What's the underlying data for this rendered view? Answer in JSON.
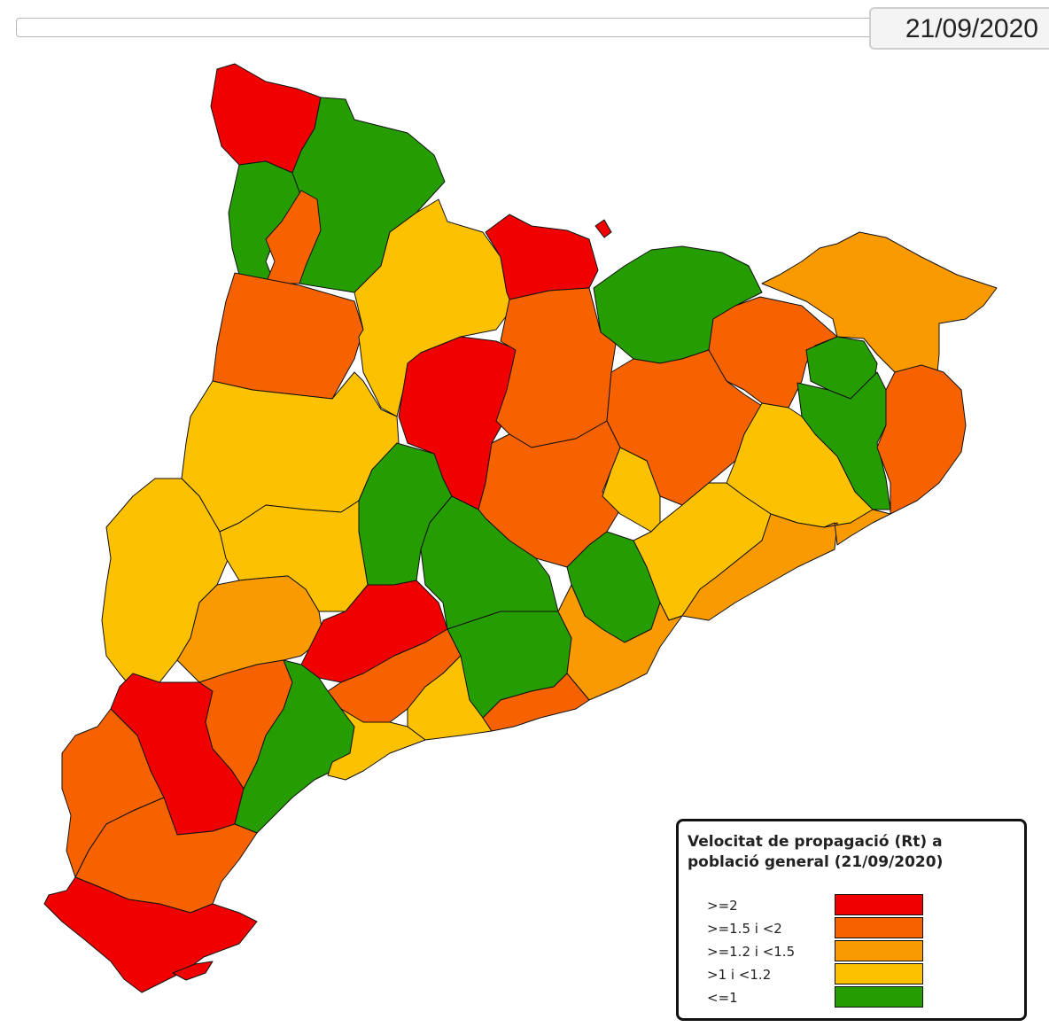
{
  "header": {
    "date_label": "21/09/2020"
  },
  "map": {
    "colors": {
      "ge2": "#f00000",
      "ge15_lt2": "#f76200",
      "ge12_lt15": "#f89a00",
      "gt1_lt12": "#fcc100",
      "le1": "#259c00"
    }
  },
  "legend": {
    "title": "Velocitat de propagació (Rt) a població general (21/09/2020)",
    "items": [
      {
        "label": ">=2",
        "color": "#f00000"
      },
      {
        "label": ">=1.5 i <2",
        "color": "#f76200"
      },
      {
        "label": ">=1.2 i <1.5",
        "color": "#f89a00"
      },
      {
        "label": ">1 i <1.2",
        "color": "#fcc100"
      },
      {
        "label": "<=1",
        "color": "#259c00"
      }
    ]
  }
}
